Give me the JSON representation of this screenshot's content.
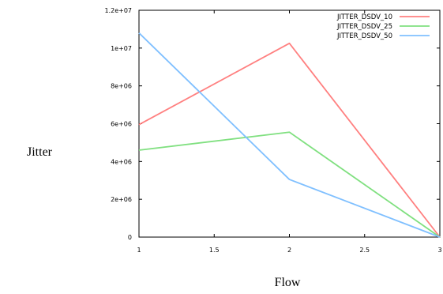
{
  "chart_data": {
    "type": "line",
    "title": "",
    "xlabel": "Flow",
    "ylabel": "Jitter",
    "x": [
      1,
      2,
      3
    ],
    "xlim": [
      1,
      3
    ],
    "ylim": [
      0,
      12000000
    ],
    "x_ticks": [
      "1",
      "1.5",
      "2",
      "2.5",
      "3"
    ],
    "x_tick_values": [
      1,
      1.5,
      2,
      2.5,
      3
    ],
    "y_ticks": [
      "0",
      "2e+06",
      "4e+06",
      "6e+06",
      "8e+06",
      "1e+07",
      "1.2e+07"
    ],
    "y_tick_values": [
      0,
      2000000,
      4000000,
      6000000,
      8000000,
      10000000,
      12000000
    ],
    "grid": false,
    "legend_position": "top-right",
    "series": [
      {
        "name": "JITTER_DSDV_10",
        "color": "#ff8080",
        "values": [
          5950000,
          10250000,
          0
        ]
      },
      {
        "name": "JITTER_DSDV_25",
        "color": "#80e080",
        "values": [
          4600000,
          5550000,
          0
        ]
      },
      {
        "name": "JITTER_DSDV_50",
        "color": "#80c0ff",
        "values": [
          10800000,
          3050000,
          0
        ]
      }
    ]
  }
}
